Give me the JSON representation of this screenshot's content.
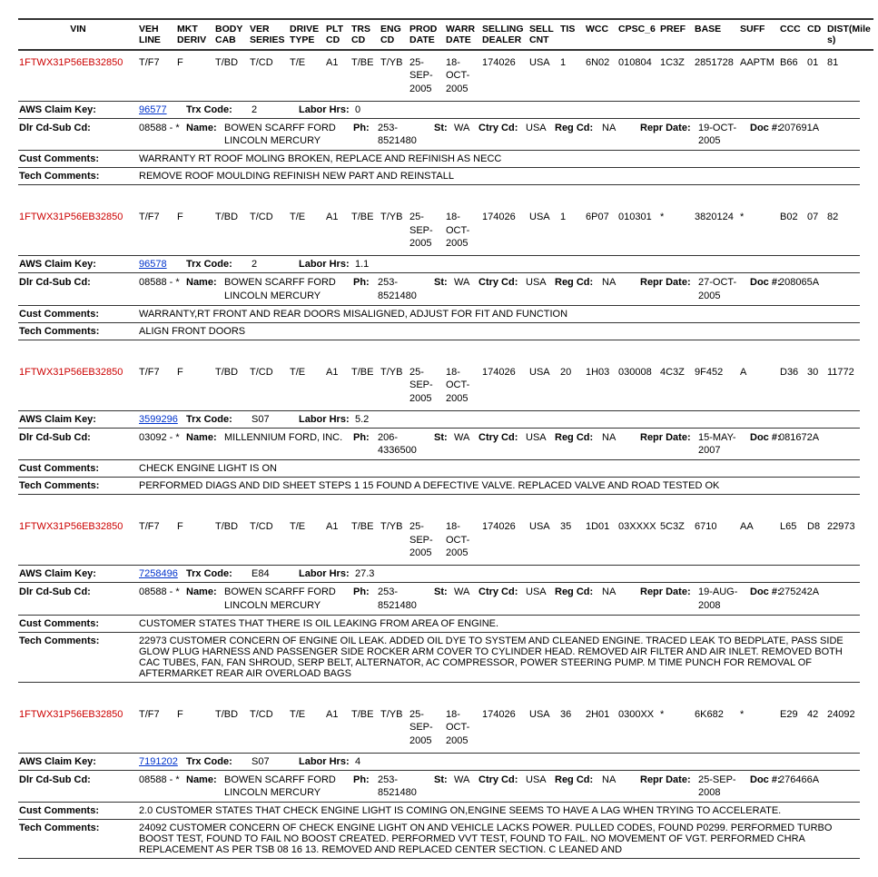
{
  "headers": {
    "vin": "VIN",
    "veh_line": "VEH LINE",
    "mkt_deriv": "MKT DERIV",
    "body_cab": "BODY CAB",
    "ver_series": "VER SERIES",
    "drive_type": "DRIVE TYPE",
    "plt_cd": "PLT CD",
    "trs_cd": "TRS CD",
    "eng_cd": "ENG CD",
    "prod_date": "PROD DATE",
    "warr_date": "WARR DATE",
    "selling_dealer": "SELLING DEALER",
    "sell_cnt": "SELL CNT",
    "tis": "TIS",
    "wcc": "WCC",
    "cpsc_6": "CPSC_6",
    "pref": "PREF",
    "base": "BASE",
    "suff": "SUFF",
    "ccc": "CCC",
    "cd": "CD",
    "dist": "DIST(Miles)"
  },
  "labels": {
    "aws_claim_key": "AWS Claim Key:",
    "trx_code": "Trx Code:",
    "labor_hrs": "Labor Hrs:",
    "dlr_cd_sub_cd": "Dlr Cd-Sub Cd:",
    "name": "Name:",
    "ph": "Ph:",
    "st": "St:",
    "ctry_cd": "Ctry Cd:",
    "reg_cd": "Reg Cd:",
    "repr_date": "Repr Date:",
    "doc_num": "Doc #:",
    "cust_comments": "Cust Comments:",
    "tech_comments": "Tech Comments:"
  },
  "records": [
    {
      "vin": "1FTWX31P56EB32850",
      "veh": "T/F7",
      "mkt": "F",
      "body": "T/BD",
      "ver": "T/CD",
      "drive": "T/E",
      "plt": "A1",
      "trs": "T/BE",
      "eng": "T/YB",
      "prod": "25-SEP-2005",
      "warr": "18-OCT-2005",
      "dealer": "174026",
      "cnt": "USA",
      "tis": "1",
      "wcc": "6N02",
      "cpsc": "010804",
      "pref": "1C3Z",
      "base": "2851728",
      "suff": "AAPTM",
      "ccc": "B66",
      "cd": "01",
      "dist": "81",
      "aws": "96577",
      "trx": "2",
      "labor": "0",
      "dlr": "08588 - *",
      "dname": "BOWEN SCARFF FORD LINCOLN MERCURY",
      "ph": "253-8521480",
      "state": "WA",
      "ctry": "USA",
      "reg": "NA",
      "repr": "19-OCT-2005",
      "doc": "207691A",
      "cust": "WARRANTY RT ROOF MOLING BROKEN, REPLACE AND REFINISH AS NECC",
      "tech": "REMOVE ROOF MOULDING REFINISH NEW PART AND REINSTALL"
    },
    {
      "vin": "1FTWX31P56EB32850",
      "veh": "T/F7",
      "mkt": "F",
      "body": "T/BD",
      "ver": "T/CD",
      "drive": "T/E",
      "plt": "A1",
      "trs": "T/BE",
      "eng": "T/YB",
      "prod": "25-SEP-2005",
      "warr": "18-OCT-2005",
      "dealer": "174026",
      "cnt": "USA",
      "tis": "1",
      "wcc": "6P07",
      "cpsc": "010301",
      "pref": "*",
      "base": "3820124",
      "suff": "*",
      "ccc": "B02",
      "cd": "07",
      "dist": "82",
      "aws": "96578",
      "trx": "2",
      "labor": "1.1",
      "dlr": "08588 - *",
      "dname": "BOWEN SCARFF FORD LINCOLN MERCURY",
      "ph": "253-8521480",
      "state": "WA",
      "ctry": "USA",
      "reg": "NA",
      "repr": "27-OCT-2005",
      "doc": "208065A",
      "cust": "WARRANTY,RT FRONT AND REAR DOORS MISALIGNED, ADJUST FOR FIT AND FUNCTION",
      "tech": "ALIGN FRONT DOORS"
    },
    {
      "vin": "1FTWX31P56EB32850",
      "veh": "T/F7",
      "mkt": "F",
      "body": "T/BD",
      "ver": "T/CD",
      "drive": "T/E",
      "plt": "A1",
      "trs": "T/BE",
      "eng": "T/YB",
      "prod": "25-SEP-2005",
      "warr": "18-OCT-2005",
      "dealer": "174026",
      "cnt": "USA",
      "tis": "20",
      "wcc": "1H03",
      "cpsc": "030008",
      "pref": "4C3Z",
      "base": "9F452",
      "suff": "A",
      "ccc": "D36",
      "cd": "30",
      "dist": "11772",
      "aws": "3599296",
      "trx": "S07",
      "labor": "5.2",
      "dlr": "03092 - *",
      "dname": "MILLENNIUM FORD, INC.",
      "ph": "206-4336500",
      "state": "WA",
      "ctry": "USA",
      "reg": "NA",
      "repr": "15-MAY-2007",
      "doc": "081672A",
      "cust": "CHECK ENGINE LIGHT IS ON",
      "tech": "PERFORMED DIAGS AND DID SHEET STEPS 1 15 FOUND A DEFECTIVE VALVE. REPLACED VALVE AND ROAD TESTED OK"
    },
    {
      "vin": "1FTWX31P56EB32850",
      "veh": "T/F7",
      "mkt": "F",
      "body": "T/BD",
      "ver": "T/CD",
      "drive": "T/E",
      "plt": "A1",
      "trs": "T/BE",
      "eng": "T/YB",
      "prod": "25-SEP-2005",
      "warr": "18-OCT-2005",
      "dealer": "174026",
      "cnt": "USA",
      "tis": "35",
      "wcc": "1D01",
      "cpsc": "03XXXX",
      "pref": "5C3Z",
      "base": "6710",
      "suff": "AA",
      "ccc": "L65",
      "cd": "D8",
      "dist": "22973",
      "aws": "7258496",
      "trx": "E84",
      "labor": "27.3",
      "dlr": "08588 - *",
      "dname": "BOWEN SCARFF FORD LINCOLN MERCURY",
      "ph": "253-8521480",
      "state": "WA",
      "ctry": "USA",
      "reg": "NA",
      "repr": "19-AUG-2008",
      "doc": "275242A",
      "cust": "CUSTOMER STATES THAT THERE IS OIL LEAKING FROM AREA OF ENGINE.",
      "tech": "22973 CUSTOMER CONCERN OF ENGINE OIL LEAK. ADDED OIL DYE TO SYSTEM AND CLEANED ENGINE. TRACED LEAK TO BEDPLATE, PASS SIDE GLOW PLUG HARNESS AND PASSENGER SIDE ROCKER ARM COVER TO CYLINDER HEAD. REMOVED AIR FILTER AND AIR INLET. REMOVED BOTH CAC TUBES, FAN, FAN SHROUD, SERP BELT, ALTERNATOR, AC COMPRESSOR, POWER STEERING PUMP. M TIME PUNCH FOR REMOVAL OF AFTERMARKET REAR AIR OVERLOAD BAGS"
    },
    {
      "vin": "1FTWX31P56EB32850",
      "veh": "T/F7",
      "mkt": "F",
      "body": "T/BD",
      "ver": "T/CD",
      "drive": "T/E",
      "plt": "A1",
      "trs": "T/BE",
      "eng": "T/YB",
      "prod": "25-SEP-2005",
      "warr": "18-OCT-2005",
      "dealer": "174026",
      "cnt": "USA",
      "tis": "36",
      "wcc": "2H01",
      "cpsc": "0300XX",
      "pref": "*",
      "base": "6K682",
      "suff": "*",
      "ccc": "E29",
      "cd": "42",
      "dist": "24092",
      "aws": "7191202",
      "trx": "S07",
      "labor": "4",
      "dlr": "08588 - *",
      "dname": "BOWEN SCARFF FORD LINCOLN MERCURY",
      "ph": "253-8521480",
      "state": "WA",
      "ctry": "USA",
      "reg": "NA",
      "repr": "25-SEP-2008",
      "doc": "276466A",
      "cust": "2.0 CUSTOMER STATES THAT CHECK ENGINE LIGHT IS COMING ON,ENGINE SEEMS TO HAVE A LAG WHEN TRYING TO ACCELERATE.",
      "tech": "24092 CUSTOMER CONCERN OF CHECK ENGINE LIGHT ON AND VEHICLE LACKS POWER. PULLED CODES, FOUND P0299. PERFORMED TURBO BOOST TEST, FOUND TO FAIL NO BOOST CREATED. PERFORMED VVT TEST, FOUND TO FAIL. NO MOVEMENT OF VGT. PERFORMED CHRA REPLACEMENT AS PER TSB 08 16 13. REMOVED AND REPLACED CENTER SECTION. C LEANED AND"
    }
  ]
}
